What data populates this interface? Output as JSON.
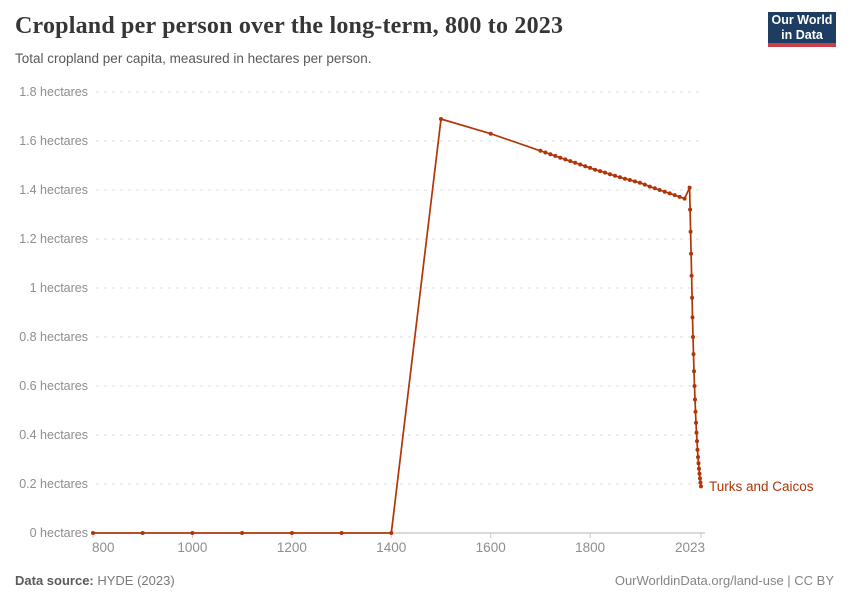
{
  "header": {
    "title": "Cropland per person over the long-term, 800 to 2023",
    "subtitle": "Total cropland per capita, measured in hectares per person."
  },
  "logo": {
    "line1": "Our World",
    "line2": "in Data",
    "bg_color": "#1d3d63",
    "bar_color": "#cc3e48"
  },
  "chart_data": {
    "type": "line",
    "title": "Cropland per person over the long-term, 800 to 2023",
    "subtitle": "Total cropland per capita, measured in hectares per person.",
    "unit": "hectares per person",
    "entity_label": "Turks and Caicos",
    "line_color": "#b13507",
    "grid": "dashed horizontal gridlines",
    "legend_position": "end-of-line label",
    "x_domain": [
      800,
      2023
    ],
    "y_domain": [
      0,
      1.8
    ],
    "x_ticks": [
      {
        "value": 800,
        "label": "800"
      },
      {
        "value": 1000,
        "label": "1000"
      },
      {
        "value": 1200,
        "label": "1200"
      },
      {
        "value": 1400,
        "label": "1400"
      },
      {
        "value": 1600,
        "label": "1600"
      },
      {
        "value": 1800,
        "label": "1800"
      },
      {
        "value": 2023,
        "label": "2023"
      }
    ],
    "y_ticks": [
      {
        "value": 0,
        "label": "0 hectares"
      },
      {
        "value": 0.2,
        "label": "0.2 hectares"
      },
      {
        "value": 0.4,
        "label": "0.4 hectares"
      },
      {
        "value": 0.6,
        "label": "0.6 hectares"
      },
      {
        "value": 0.8,
        "label": "0.8 hectares"
      },
      {
        "value": 1,
        "label": "1 hectares"
      },
      {
        "value": 1.2,
        "label": "1.2 hectares"
      },
      {
        "value": 1.4,
        "label": "1.4 hectares"
      },
      {
        "value": 1.6,
        "label": "1.6 hectares"
      },
      {
        "value": 1.8,
        "label": "1.8 hectares"
      }
    ],
    "series": [
      {
        "name": "Turks and Caicos",
        "points": [
          [
            800,
            0
          ],
          [
            900,
            0
          ],
          [
            1000,
            0
          ],
          [
            1100,
            0
          ],
          [
            1200,
            0
          ],
          [
            1300,
            0
          ],
          [
            1400,
            0
          ],
          [
            1500,
            1.69
          ],
          [
            1600,
            1.63
          ],
          [
            1700,
            1.56
          ],
          [
            1710,
            1.553
          ],
          [
            1720,
            1.546
          ],
          [
            1730,
            1.539
          ],
          [
            1740,
            1.532
          ],
          [
            1750,
            1.525
          ],
          [
            1760,
            1.518
          ],
          [
            1770,
            1.511
          ],
          [
            1780,
            1.504
          ],
          [
            1790,
            1.497
          ],
          [
            1800,
            1.49
          ],
          [
            1810,
            1.483
          ],
          [
            1820,
            1.477
          ],
          [
            1830,
            1.471
          ],
          [
            1840,
            1.464
          ],
          [
            1850,
            1.458
          ],
          [
            1860,
            1.452
          ],
          [
            1870,
            1.446
          ],
          [
            1880,
            1.441
          ],
          [
            1890,
            1.435
          ],
          [
            1900,
            1.43
          ],
          [
            1910,
            1.422
          ],
          [
            1920,
            1.414
          ],
          [
            1930,
            1.407
          ],
          [
            1940,
            1.4
          ],
          [
            1950,
            1.393
          ],
          [
            1960,
            1.386
          ],
          [
            1970,
            1.379
          ],
          [
            1980,
            1.372
          ],
          [
            1990,
            1.365
          ],
          [
            2000,
            1.41
          ],
          [
            2001,
            1.32
          ],
          [
            2002,
            1.23
          ],
          [
            2003,
            1.14
          ],
          [
            2004,
            1.05
          ],
          [
            2005,
            0.96
          ],
          [
            2006,
            0.88
          ],
          [
            2007,
            0.8
          ],
          [
            2008,
            0.73
          ],
          [
            2009,
            0.66
          ],
          [
            2010,
            0.6
          ],
          [
            2011,
            0.545
          ],
          [
            2012,
            0.495
          ],
          [
            2013,
            0.45
          ],
          [
            2014,
            0.41
          ],
          [
            2015,
            0.375
          ],
          [
            2016,
            0.34
          ],
          [
            2017,
            0.31
          ],
          [
            2018,
            0.285
          ],
          [
            2019,
            0.262
          ],
          [
            2020,
            0.242
          ],
          [
            2021,
            0.223
          ],
          [
            2022,
            0.206
          ],
          [
            2023,
            0.19
          ]
        ]
      }
    ]
  },
  "footer": {
    "source_label": "Data source:",
    "source_value": " HYDE (2023)",
    "right_text": "OurWorldinData.org/land-use | CC BY"
  }
}
